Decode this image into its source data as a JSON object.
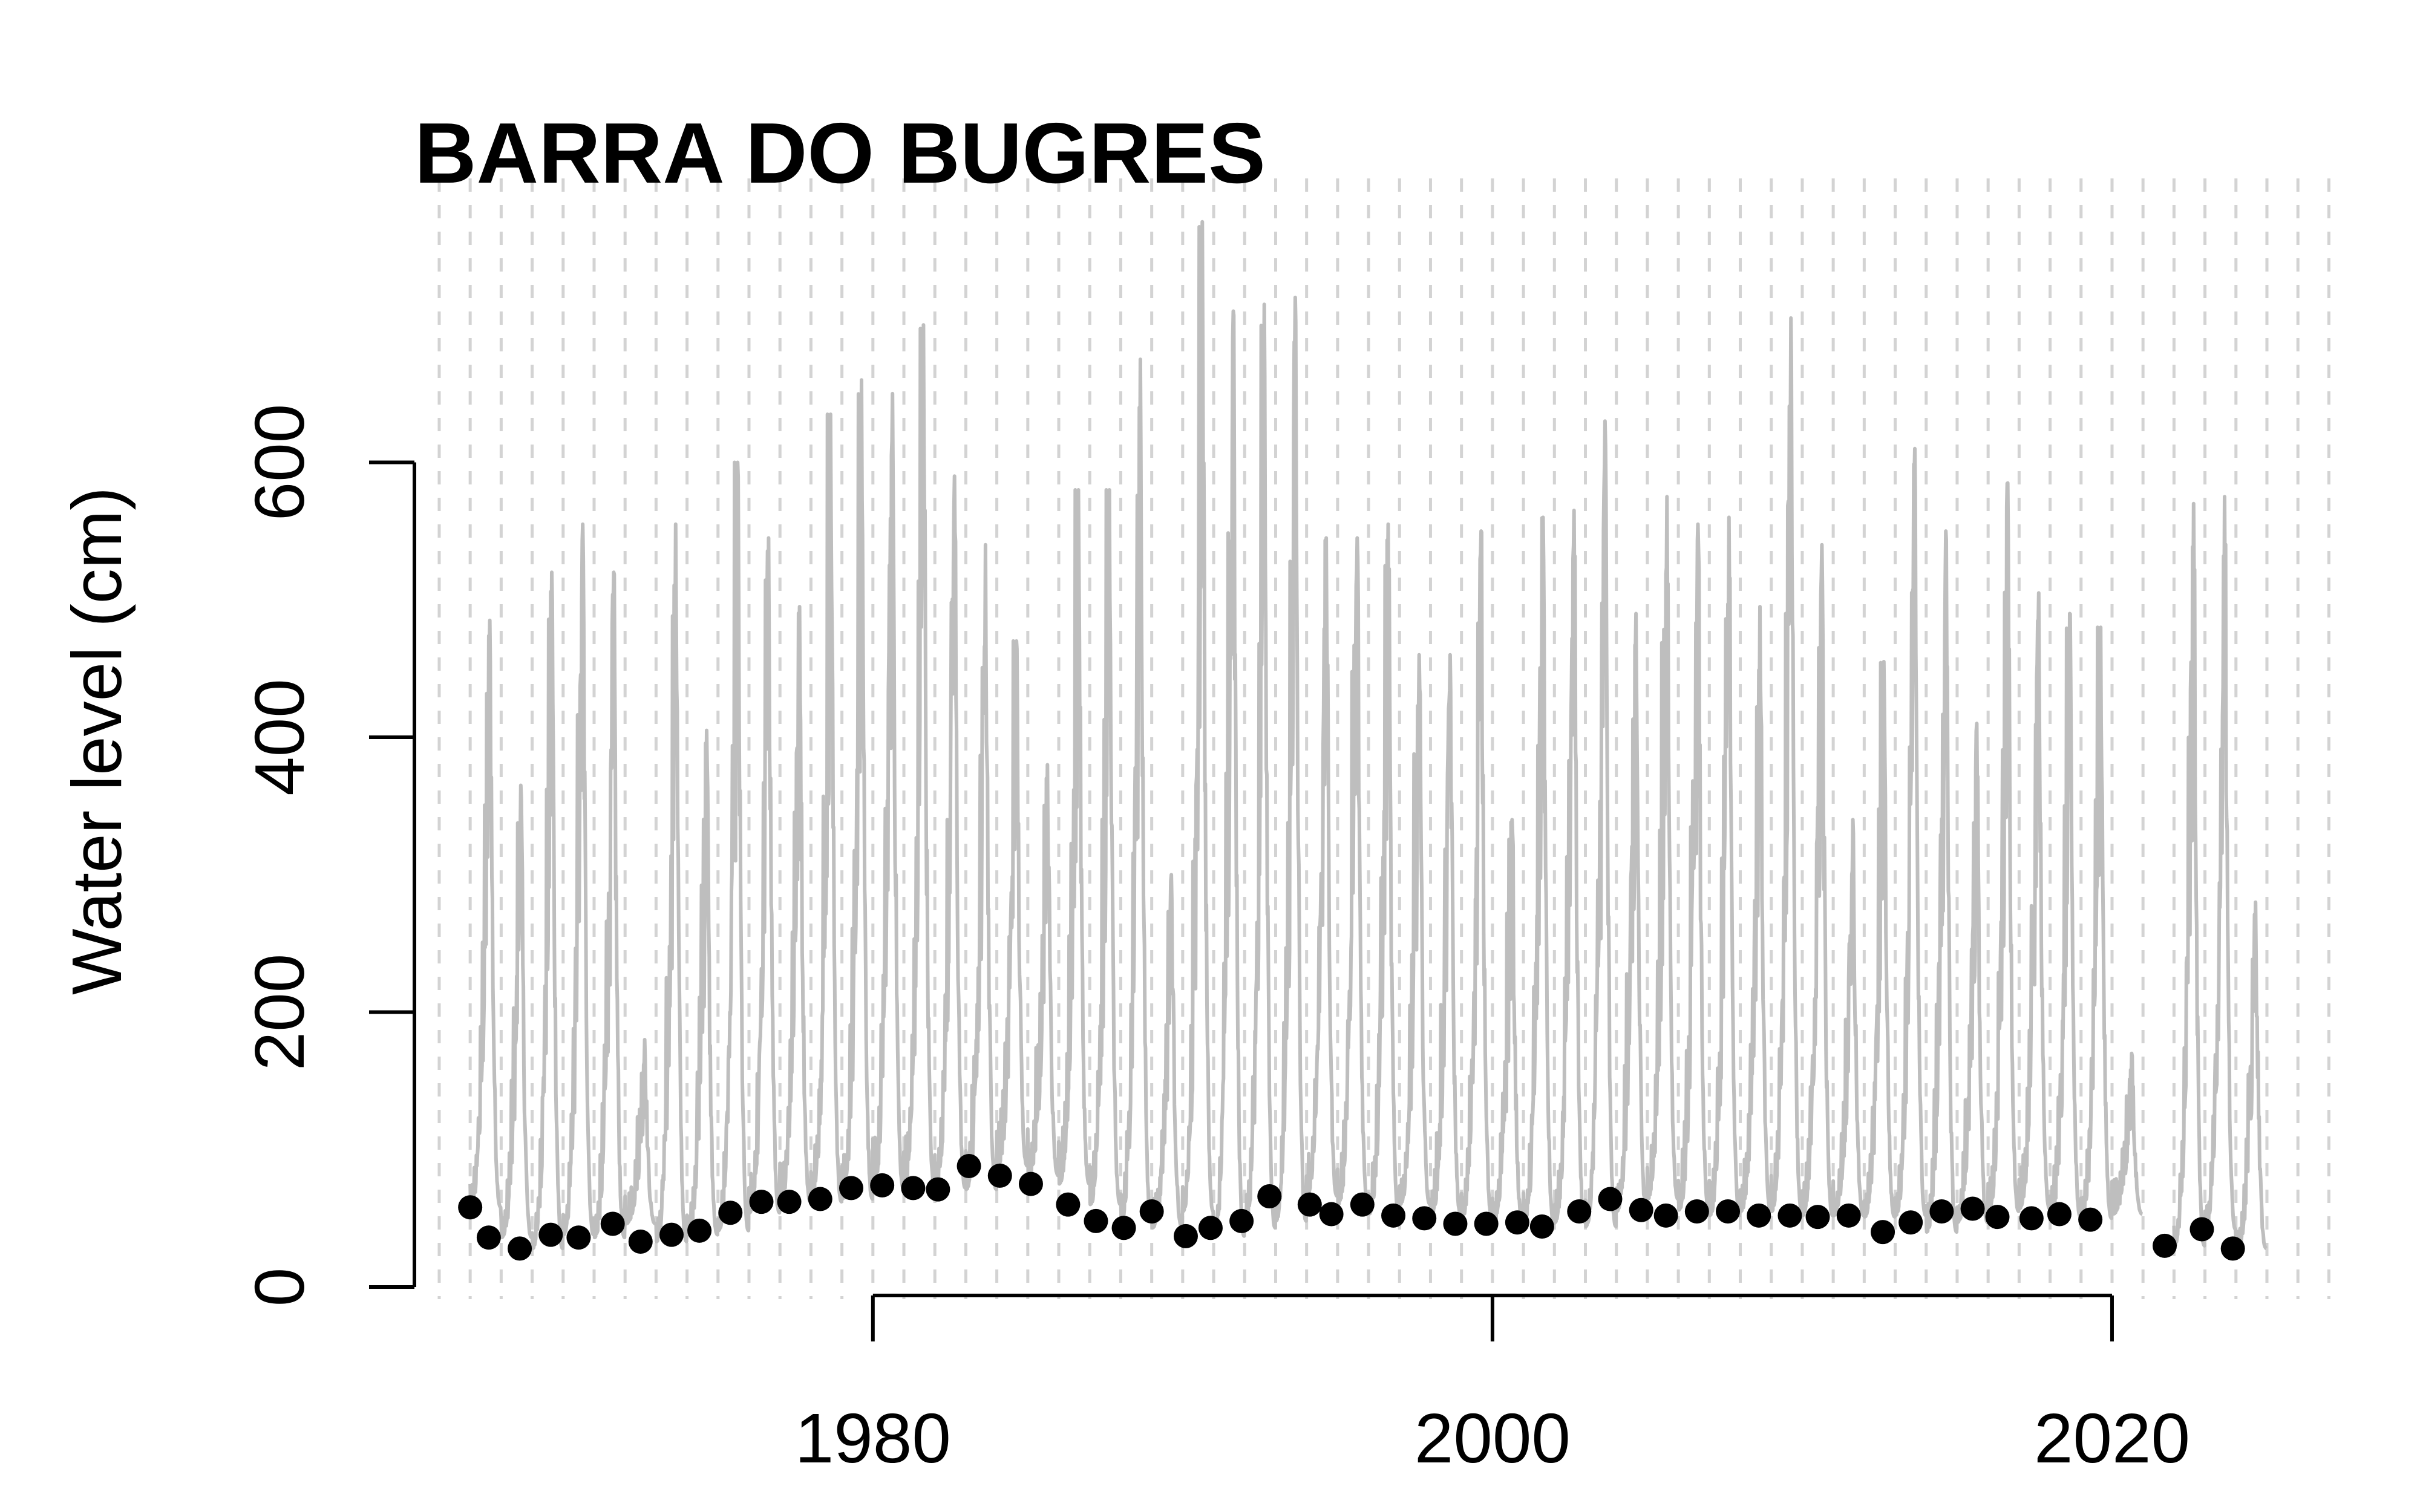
{
  "chart_data": {
    "type": "line",
    "title": "BARRA DO BUGRES",
    "ylabel": "Water level (cm)",
    "xlabel": "",
    "xlim": [
      1965.2,
      2027.5
    ],
    "ylim": [
      0,
      800
    ],
    "x_ticks": [
      1980,
      2000,
      2020
    ],
    "y_ticks": [
      0,
      200,
      400,
      600
    ],
    "grid": "vertical dashed lines at each year",
    "grid_years": [
      1966,
      1967,
      1968,
      1969,
      1970,
      1971,
      1972,
      1973,
      1974,
      1975,
      1976,
      1977,
      1978,
      1979,
      1980,
      1981,
      1982,
      1983,
      1984,
      1985,
      1986,
      1987,
      1988,
      1989,
      1990,
      1991,
      1992,
      1993,
      1994,
      1995,
      1996,
      1997,
      1998,
      1999,
      2000,
      2001,
      2002,
      2003,
      2004,
      2005,
      2006,
      2007,
      2008,
      2009,
      2010,
      2011,
      2012,
      2013,
      2014,
      2015,
      2016,
      2017,
      2018,
      2019,
      2020,
      2021,
      2022,
      2023,
      2024,
      2025,
      2026,
      2027
    ],
    "series": [
      {
        "style": "grey line (daily water level)",
        "color": "#bebebe",
        "segments": [
          {
            "years": [
              1967,
              1968,
              1969,
              1970,
              1971,
              1972,
              1973,
              1974,
              1975,
              1976,
              1977,
              1978,
              1979,
              1980,
              1981,
              1982,
              1983,
              1984,
              1985,
              1986,
              1987,
              1988,
              1989,
              1990,
              1991,
              1992,
              1993,
              1994,
              1995,
              1996,
              1997,
              1998,
              1999,
              2000,
              2001,
              2002,
              2003,
              2004,
              2005,
              2006,
              2007,
              2008,
              2009,
              2010,
              2011,
              2012,
              2013,
              2014,
              2015,
              2016,
              2017,
              2018,
              2019,
              2020
            ],
            "peaks": [
              485,
              365,
              520,
              555,
              520,
              180,
              555,
              405,
              600,
              545,
              495,
              635,
              660,
              650,
              700,
              590,
              540,
              470,
              380,
              580,
              580,
              675,
              300,
              775,
              710,
              715,
              720,
              545,
              545,
              555,
              460,
              460,
              550,
              340,
              560,
              565,
              630,
              490,
              575,
              555,
              560,
              495,
              705,
              540,
              340,
              455,
              610,
              550,
              410,
              585,
              505,
              490,
              480,
              170
            ],
            "base": [
              58,
              36,
              28,
              38,
              36,
              46,
              33,
              38,
              41,
              54,
              62,
              62,
              64,
              72,
              74,
              72,
              71,
              88,
              81,
              75,
              60,
              48,
              43,
              55,
              37,
              43,
              48,
              66,
              60,
              53,
              60,
              52,
              50,
              46,
              46,
              47,
              44,
              55,
              64,
              56,
              52,
              55,
              55,
              52,
              52,
              51,
              52,
              40,
              47,
              55,
              57,
              51,
              50,
              53
            ]
          },
          {
            "years": [
              2022,
              2023,
              2024
            ],
            "peaks": [
              570,
              575,
              280
            ],
            "base": [
              30,
              42,
              28
            ]
          }
        ]
      },
      {
        "style": "black points (annual minimum)",
        "color": "#000000",
        "x": [
          1967.0,
          1967.6,
          1968.6,
          1969.6,
          1970.5,
          1971.6,
          1972.5,
          1973.5,
          1974.4,
          1975.4,
          1976.4,
          1977.3,
          1978.3,
          1979.3,
          1980.3,
          1981.3,
          1982.1,
          1983.1,
          1984.1,
          1985.1,
          1986.3,
          1987.2,
          1988.1,
          1989.0,
          1990.1,
          1990.9,
          1991.9,
          1992.8,
          1994.1,
          1994.8,
          1995.8,
          1996.8,
          1997.8,
          1998.8,
          1999.8,
          2000.8,
          2001.6,
          2002.8,
          2003.8,
          2004.8,
          2005.6,
          2006.6,
          2007.6,
          2008.6,
          2009.6,
          2010.5,
          2011.5,
          2012.6,
          2013.5,
          2014.5,
          2015.5,
          2016.3,
          2017.4,
          2018.3,
          2019.3,
          2021.7,
          2022.9,
          2023.9
        ],
        "y": [
          58,
          36,
          28,
          38,
          36,
          46,
          33,
          38,
          41,
          54,
          62,
          62,
          64,
          72,
          74,
          72,
          71,
          88,
          81,
          75,
          60,
          48,
          43,
          55,
          37,
          43,
          48,
          66,
          60,
          53,
          60,
          52,
          50,
          46,
          46,
          47,
          44,
          55,
          64,
          56,
          52,
          55,
          55,
          52,
          52,
          51,
          52,
          40,
          47,
          55,
          57,
          51,
          50,
          53,
          49,
          30,
          42,
          28
        ]
      }
    ]
  }
}
